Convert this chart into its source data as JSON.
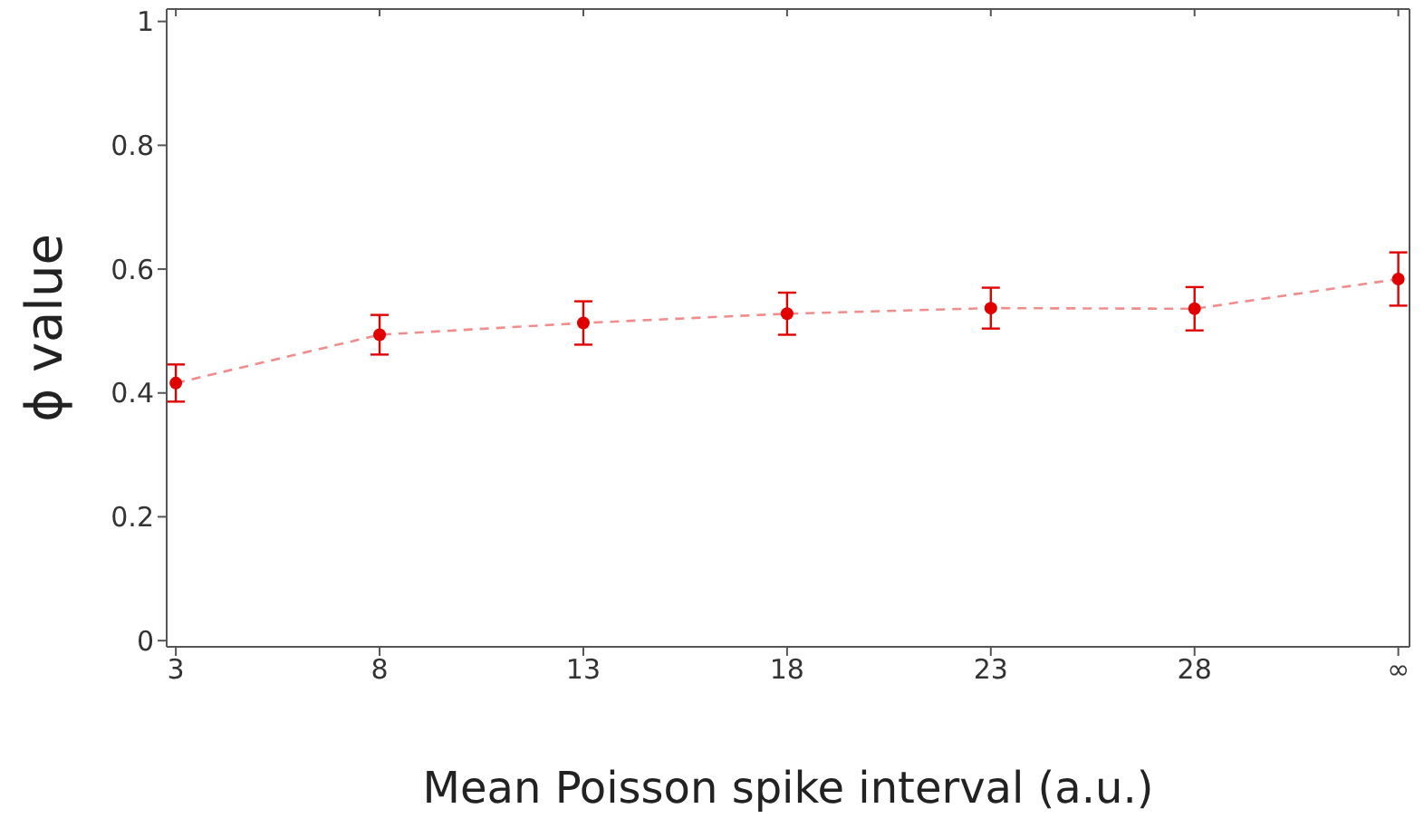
{
  "chart_data": {
    "type": "line",
    "xlabel": "Mean Poisson spike interval (a.u.)",
    "ylabel": "ϕ value",
    "categories": [
      "3",
      "8",
      "13",
      "18",
      "23",
      "28",
      "∞"
    ],
    "series": [
      {
        "color": "#e00000",
        "values": [
          0.416,
          0.494,
          0.513,
          0.528,
          0.537,
          0.536,
          0.584
        ],
        "errors": [
          0.03,
          0.032,
          0.035,
          0.034,
          0.033,
          0.035,
          0.043
        ]
      }
    ],
    "ylim": [
      -0.01,
      1.02
    ],
    "yticks": [
      0,
      0.2,
      0.4,
      0.6,
      0.8,
      1
    ],
    "grid": false,
    "marker": "circle",
    "line_style": "dashed"
  }
}
